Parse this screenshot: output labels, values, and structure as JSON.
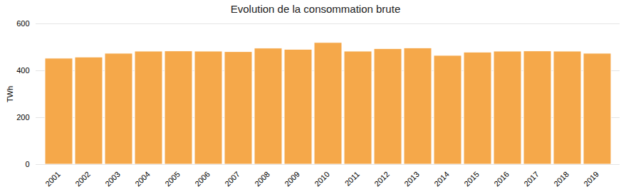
{
  "chart_data": {
    "type": "bar",
    "title": "Evolution de la consommation brute",
    "ylabel": "TWh",
    "categories": [
      "2001",
      "2002",
      "2003",
      "2004",
      "2005",
      "2006",
      "2007",
      "2008",
      "2009",
      "2010",
      "2011",
      "2012",
      "2013",
      "2014",
      "2015",
      "2016",
      "2017",
      "2018",
      "2019"
    ],
    "values": [
      452,
      457,
      473,
      482,
      483,
      482,
      480,
      495,
      490,
      519,
      482,
      493,
      496,
      464,
      478,
      482,
      483,
      482,
      473
    ],
    "color": "#F5A84A",
    "ylim": [
      0,
      600
    ],
    "yticks": [
      0,
      200,
      400,
      600
    ],
    "grid": true
  }
}
